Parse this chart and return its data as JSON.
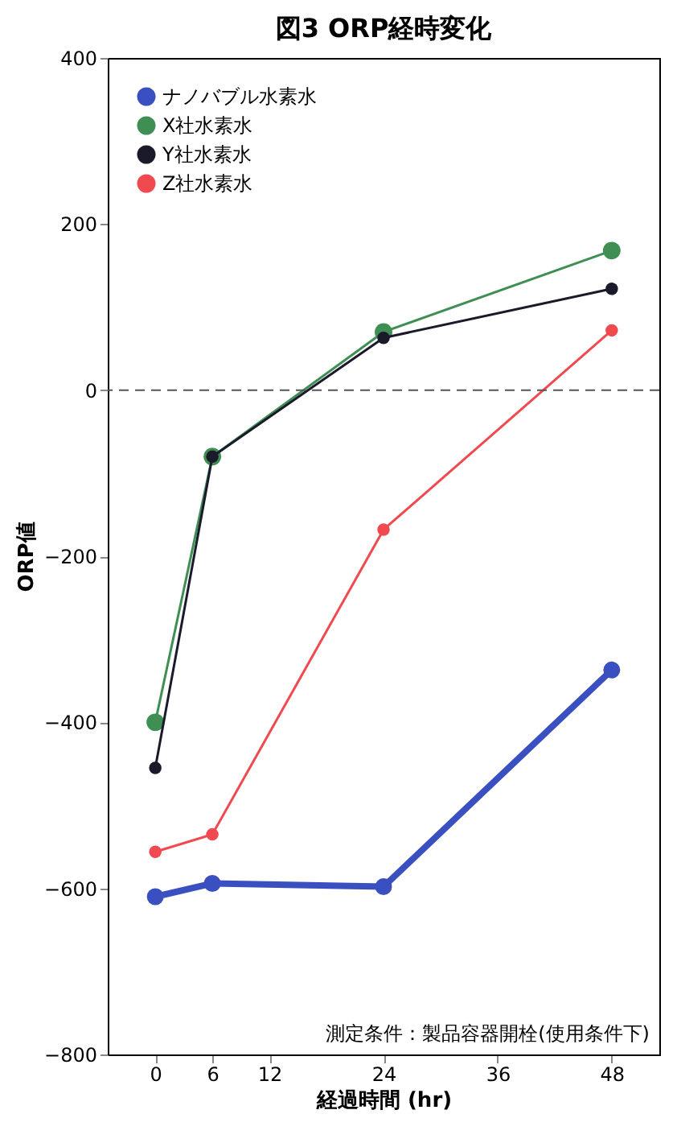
{
  "chart_data": {
    "type": "line",
    "title": "図3 ORP経時変化",
    "xlabel": "経過時間 (hr)",
    "ylabel": "ORP値",
    "annotations": [
      "測定条件：製品容器開栓(使用条件下)"
    ],
    "x": [
      0,
      6,
      24,
      48
    ],
    "series": [
      {
        "name": "ナノバブル水素水",
        "color": "#3a4fc0",
        "values": [
          -610,
          -594,
          -598,
          -337
        ]
      },
      {
        "name": "X社水素水",
        "color": "#3f8f55",
        "values": [
          -400,
          -80,
          70,
          168
        ]
      },
      {
        "name": "Y社水素水",
        "color": "#1a1a2a",
        "values": [
          -455,
          -80,
          63,
          122
        ]
      },
      {
        "name": "Z社水素水",
        "color": "#f04a50",
        "values": [
          -556,
          -535,
          -168,
          72
        ]
      }
    ],
    "xlim": [
      -5,
      53
    ],
    "xticks": [
      0,
      6,
      12,
      24,
      36,
      48
    ],
    "ylim": [
      -800,
      400
    ],
    "yticks": [
      -800,
      -600,
      -400,
      -200,
      0,
      200,
      400
    ],
    "ref_lines": [
      {
        "axis": "y",
        "value": 0,
        "line_style": "dashed",
        "color": "#555555"
      }
    ],
    "marker": "circle",
    "line_style": "solid",
    "legend": "top left",
    "grid": false
  }
}
